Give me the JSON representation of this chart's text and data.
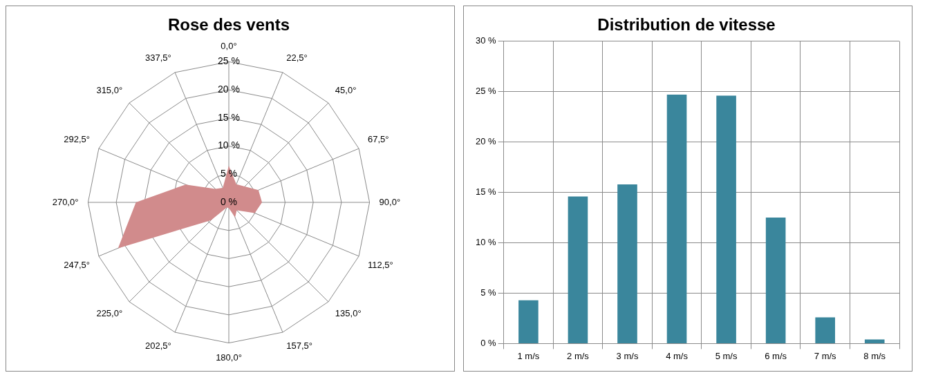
{
  "chart_data": [
    {
      "type": "radar",
      "title": "Rose des vents",
      "categories": [
        "0,0°",
        "22,5°",
        "45,0°",
        "67,5°",
        "90,0°",
        "112,5°",
        "135,0°",
        "157,5°",
        "180,0°",
        "202,5°",
        "225,0°",
        "247,5°",
        "270,0°",
        "292,5°",
        "315,0°",
        "337,5°"
      ],
      "series": [
        {
          "color": "#d18b8c",
          "values": [
            6.5,
            3.5,
            4,
            5.7,
            5.9,
            5,
            2,
            2.9,
            1,
            1,
            4.5,
            21.3,
            16.5,
            8.3,
            3.4,
            2.8
          ]
        }
      ],
      "ylim": [
        0,
        25
      ],
      "yticks": [
        {
          "value": 0,
          "label": "0 %"
        },
        {
          "value": 5,
          "label": "5 %"
        },
        {
          "value": 10,
          "label": "10 %"
        },
        {
          "value": 15,
          "label": "15 %"
        },
        {
          "value": 20,
          "label": "20 %"
        },
        {
          "value": 25,
          "label": "25 %"
        }
      ],
      "grid": true,
      "legend": false
    },
    {
      "type": "bar",
      "title": "Distribution de vitesse",
      "categories": [
        "1 m/s",
        "2 m/s",
        "3 m/s",
        "4 m/s",
        "5 m/s",
        "6 m/s",
        "7 m/s",
        "8 m/s"
      ],
      "series": [
        {
          "color": "#3a869c",
          "values": [
            4.3,
            14.6,
            15.8,
            24.7,
            24.6,
            12.5,
            2.6,
            0.4
          ]
        }
      ],
      "ylim": [
        0,
        30
      ],
      "yticks": [
        {
          "value": 0,
          "label": "0 %"
        },
        {
          "value": 5,
          "label": "5 %"
        },
        {
          "value": 10,
          "label": "10 %"
        },
        {
          "value": 15,
          "label": "15 %"
        },
        {
          "value": 20,
          "label": "20 %"
        },
        {
          "value": 25,
          "label": "25 %"
        },
        {
          "value": 30,
          "label": "30 %"
        }
      ],
      "grid": true,
      "legend": false
    }
  ]
}
